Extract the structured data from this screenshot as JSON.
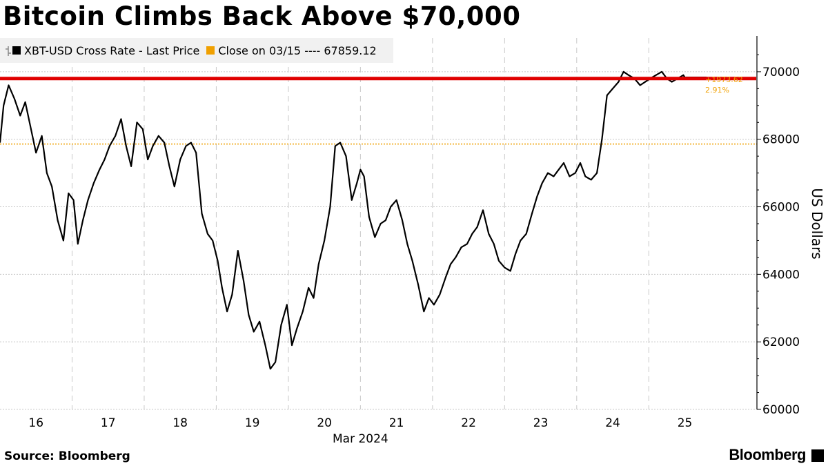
{
  "title": "Bitcoin Climbs Back Above $70,000",
  "legend": {
    "series_label": "XBT-USD Cross Rate - Last Price",
    "close_label": "Close on 03/15 ---- 67859.12",
    "series_color": "#000000",
    "close_color": "#f0a000"
  },
  "annotation": {
    "change": "+1973.62",
    "percent": "2.91%",
    "color": "#f0a000"
  },
  "source": "Source: Bloomberg",
  "brand": "Bloomberg",
  "colors": {
    "threshold_line": "#e00000",
    "grid": "#c8c8c8",
    "close_line": "#f0a000"
  },
  "chart_data": {
    "type": "line",
    "ylabel": "US Dollars",
    "xlabel": "Mar 2024",
    "ylim": [
      60000,
      71000
    ],
    "yticks": [
      60000,
      62000,
      64000,
      66000,
      68000,
      70000
    ],
    "ytick_labels": [
      "60000",
      "62000",
      "64000",
      "66000",
      "68000",
      "70000"
    ],
    "xlim": [
      15.5,
      26.0
    ],
    "xticks": [
      16,
      17,
      18,
      19,
      20,
      21,
      22,
      23,
      24,
      25
    ],
    "xtick_labels": [
      "16",
      "17",
      "18",
      "19",
      "20",
      "21",
      "22",
      "23",
      "24",
      "25"
    ],
    "day_boundaries": [
      16.5,
      17.5,
      18.5,
      19.5,
      20.5,
      21.5,
      22.5,
      23.5,
      24.5
    ],
    "threshold": 69800,
    "close_reference": 67859.12,
    "series": [
      {
        "name": "XBT-USD Cross Rate - Last Price",
        "x": [
          15.5,
          15.55,
          15.62,
          15.7,
          15.78,
          15.85,
          15.92,
          16.0,
          16.08,
          16.15,
          16.22,
          16.3,
          16.38,
          16.45,
          16.52,
          16.58,
          16.65,
          16.72,
          16.8,
          16.88,
          16.95,
          17.02,
          17.1,
          17.18,
          17.25,
          17.32,
          17.4,
          17.48,
          17.55,
          17.62,
          17.7,
          17.78,
          17.85,
          17.92,
          18.0,
          18.08,
          18.15,
          18.22,
          18.3,
          18.38,
          18.45,
          18.52,
          18.58,
          18.65,
          18.72,
          18.8,
          18.88,
          18.95,
          19.02,
          19.1,
          19.18,
          19.25,
          19.32,
          19.4,
          19.48,
          19.55,
          19.62,
          19.7,
          19.78,
          19.85,
          19.92,
          20.0,
          20.08,
          20.15,
          20.22,
          20.3,
          20.38,
          20.45,
          20.5,
          20.55,
          20.62,
          20.7,
          20.78,
          20.85,
          20.92,
          21.0,
          21.08,
          21.15,
          21.22,
          21.3,
          21.38,
          21.45,
          21.52,
          21.6,
          21.68,
          21.75,
          21.82,
          21.9,
          21.98,
          22.05,
          22.12,
          22.2,
          22.28,
          22.35,
          22.42,
          22.5,
          22.58,
          22.65,
          22.72,
          22.8,
          22.88,
          22.95,
          23.02,
          23.1,
          23.18,
          23.25,
          23.32,
          23.4,
          23.48,
          23.55,
          23.62,
          23.7,
          23.78,
          23.85,
          23.92,
          24.0,
          24.08,
          24.15,
          24.22,
          24.3,
          24.38,
          24.45,
          24.52,
          24.6,
          24.68,
          24.75,
          24.82,
          24.9,
          24.98,
          25.0,
          25.03,
          25.06,
          25.1,
          25.14,
          25.18,
          25.22,
          25.26,
          25.3
        ],
        "values": [
          67900,
          69000,
          69600,
          69200,
          68700,
          69100,
          68400,
          67600,
          68100,
          67000,
          66600,
          65600,
          65000,
          66400,
          66200,
          64900,
          65600,
          66200,
          66700,
          67100,
          67400,
          67800,
          68100,
          68600,
          67800,
          67200,
          68500,
          68300,
          67400,
          67800,
          68100,
          67900,
          67200,
          66600,
          67400,
          67800,
          67900,
          67600,
          65800,
          65200,
          65000,
          64400,
          63600,
          62900,
          63400,
          64700,
          63800,
          62800,
          62300,
          62600,
          61900,
          61200,
          61400,
          62500,
          63100,
          61900,
          62400,
          62900,
          63600,
          63300,
          64300,
          65000,
          66000,
          67800,
          67900,
          67500,
          66200,
          66700,
          67100,
          66900,
          65700,
          65100,
          65500,
          65600,
          66000,
          66200,
          65600,
          64900,
          64400,
          63700,
          62900,
          63300,
          63100,
          63400,
          63900,
          64300,
          64500,
          64800,
          64900,
          65200,
          65400,
          65900,
          65200,
          64900,
          64400,
          64200,
          64100,
          64600,
          65000,
          65200,
          65800,
          66300,
          66700,
          67000,
          66900,
          67100,
          67300,
          66900,
          67000,
          67300,
          66900,
          66800,
          67000,
          68000,
          69300,
          69500,
          69700,
          70000,
          69900,
          69800,
          69600,
          69700,
          69800,
          69900,
          70000,
          69800,
          69700,
          69800,
          69900,
          69833,
          69833,
          69833,
          69833,
          69833,
          69833,
          69833,
          69833,
          69833
        ]
      }
    ]
  }
}
